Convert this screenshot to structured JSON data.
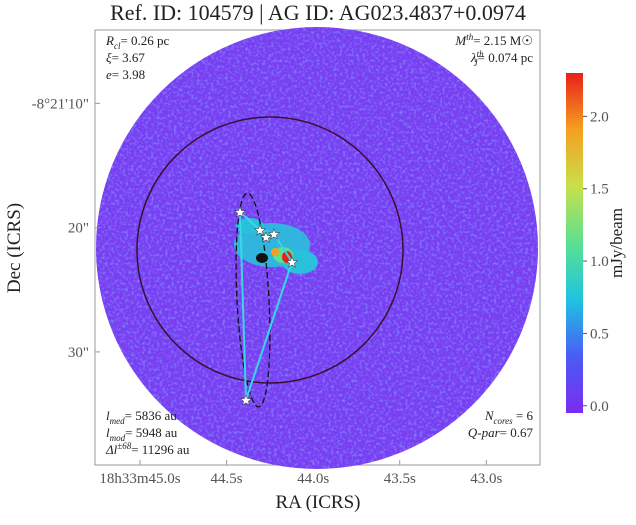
{
  "chart_data": {
    "type": "image",
    "title": "Ref. ID: 104579 | AG ID: AG023.4837+0.0974",
    "xlabel": "RA (ICRS)",
    "ylabel": "Dec (ICRS)",
    "xlim": [
      45.26,
      42.69
    ],
    "xticks": [
      {
        "value": 45.0,
        "label": "18h33m45.0s"
      },
      {
        "value": 44.5,
        "label": "44.5s"
      },
      {
        "value": 44.0,
        "label": "44.0s"
      },
      {
        "value": 43.5,
        "label": "43.5s"
      },
      {
        "value": 43.0,
        "label": "43.0s"
      }
    ],
    "ylim": [
      4.1,
      39.1
    ],
    "yticks": [
      {
        "value": 10,
        "label": "-8°21'10\""
      },
      {
        "value": 20,
        "label": "20\""
      },
      {
        "value": 30,
        "label": "30\""
      }
    ],
    "colorbar": {
      "label": "mJy/beam",
      "clim": [
        -0.05,
        2.3
      ],
      "ticks": [
        {
          "value": 0.0,
          "label": "0.0"
        },
        {
          "value": 0.5,
          "label": "0.5"
        },
        {
          "value": 1.0,
          "label": "1.0"
        },
        {
          "value": 1.5,
          "label": "1.5"
        },
        {
          "value": 2.0,
          "label": "2.0"
        }
      ],
      "colors": [
        "#7b2cf0",
        "#4a5cf5",
        "#1fc4e0",
        "#5be090",
        "#c8e04a",
        "#f5a020",
        "#e8201a"
      ]
    },
    "annotations_top_left": [
      {
        "symbol": "R",
        "sub": "cl",
        "text": "= 0.26 pc"
      },
      {
        "symbol": "ξ",
        "text": "= 3.67"
      },
      {
        "symbol": "e",
        "text": "= 3.98"
      }
    ],
    "annotations_top_right": [
      {
        "symbol": "M",
        "sup": "th",
        "text": "= 2.15 M☉"
      },
      {
        "symbol": "λ",
        "sub": "J",
        "sup": "th",
        "text": "= 0.074 pc"
      }
    ],
    "annotations_bottom_left": [
      {
        "symbol": "l",
        "sub": "med",
        "text": "= 5836 au"
      },
      {
        "symbol": "l",
        "sub": "mod",
        "text": "= 5948 au"
      },
      {
        "symbol": "Δl",
        "sup": "±68",
        "text": "= 11296 au"
      }
    ],
    "annotations_bottom_right": [
      {
        "symbol": "N",
        "sub": "cores",
        "text": " = 6"
      },
      {
        "symbol": "Q-par",
        "text": "= 0.67"
      }
    ]
  }
}
